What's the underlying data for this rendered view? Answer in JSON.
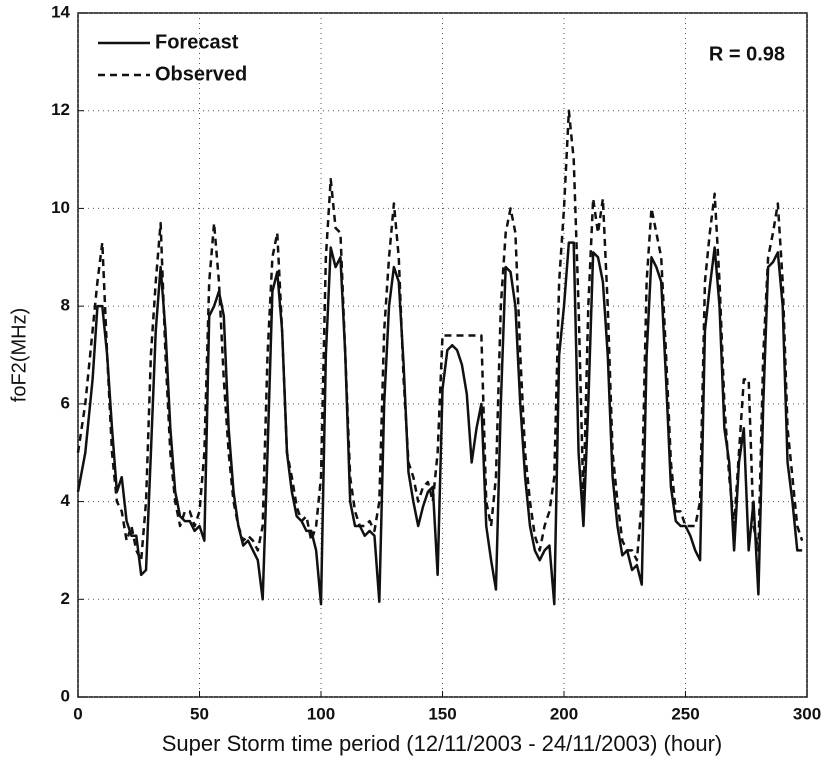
{
  "chart_data": {
    "type": "line",
    "annotation": "R = 0.98",
    "x_label": "Super Storm time period (12/11/2003 - 24/11/2003) (hour)",
    "y_label": "foF2(MHz)",
    "xlim": [
      0,
      300
    ],
    "xticks": [
      0,
      50,
      100,
      150,
      200,
      250,
      300
    ],
    "ylim": [
      0,
      14
    ],
    "yticks": [
      0,
      2,
      4,
      6,
      8,
      10,
      12,
      14
    ],
    "grid": true,
    "legend": "top-left",
    "x": [
      0,
      3,
      6,
      8,
      10,
      12,
      14,
      16,
      18,
      20,
      22,
      24,
      26,
      28,
      30,
      32,
      34,
      36,
      38,
      40,
      42,
      44,
      46,
      48,
      50,
      52,
      54,
      56,
      58,
      60,
      62,
      64,
      66,
      68,
      70,
      72,
      74,
      76,
      78,
      80,
      82,
      84,
      86,
      88,
      90,
      92,
      94,
      96,
      98,
      100,
      102,
      104,
      106,
      108,
      110,
      112,
      114,
      116,
      118,
      120,
      122,
      124,
      126,
      128,
      130,
      132,
      134,
      136,
      138,
      140,
      142,
      144,
      146,
      148,
      150,
      152,
      154,
      156,
      158,
      160,
      162,
      164,
      166,
      168,
      170,
      172,
      174,
      176,
      178,
      180,
      182,
      184,
      186,
      188,
      190,
      192,
      194,
      196,
      198,
      200,
      202,
      204,
      206,
      208,
      210,
      212,
      214,
      216,
      218,
      220,
      222,
      224,
      226,
      228,
      230,
      232,
      234,
      236,
      238,
      240,
      242,
      244,
      246,
      248,
      250,
      252,
      254,
      256,
      258,
      260,
      262,
      264,
      266,
      268,
      270,
      272,
      274,
      276,
      278,
      280,
      282,
      284,
      286,
      288,
      290,
      292,
      294,
      296,
      298
    ],
    "series": [
      {
        "name": "Forecast",
        "color": "#111111",
        "line_style": "solid",
        "values": [
          4.2,
          5.0,
          6.5,
          8.0,
          8.0,
          7.0,
          5.5,
          4.2,
          4.5,
          3.6,
          3.3,
          3.3,
          2.5,
          2.6,
          5.0,
          7.5,
          8.8,
          7.5,
          5.5,
          4.2,
          3.7,
          3.6,
          3.6,
          3.4,
          3.5,
          3.2,
          7.8,
          8.0,
          8.3,
          7.8,
          5.5,
          4.2,
          3.5,
          3.1,
          3.2,
          3.0,
          2.8,
          2.0,
          5.0,
          8.3,
          8.7,
          7.5,
          5.0,
          4.2,
          3.7,
          3.6,
          3.4,
          3.4,
          3.0,
          1.9,
          7.0,
          9.2,
          8.8,
          9.0,
          7.0,
          4.0,
          3.5,
          3.5,
          3.3,
          3.4,
          3.3,
          1.95,
          6.0,
          8.0,
          8.8,
          8.5,
          6.8,
          4.6,
          4.0,
          3.5,
          3.9,
          4.2,
          4.3,
          2.5,
          6.3,
          7.1,
          7.2,
          7.1,
          6.8,
          6.2,
          4.8,
          5.5,
          6.0,
          3.5,
          2.8,
          2.2,
          6.0,
          8.8,
          8.7,
          8.0,
          6.0,
          4.5,
          3.5,
          3.0,
          2.8,
          3.0,
          3.1,
          1.9,
          7.0,
          8.0,
          9.3,
          9.3,
          5.0,
          3.5,
          6.0,
          9.1,
          9.0,
          8.5,
          7.0,
          4.5,
          3.5,
          2.9,
          3.0,
          2.6,
          2.7,
          2.3,
          7.0,
          9.0,
          8.8,
          8.5,
          6.5,
          4.3,
          3.6,
          3.5,
          3.5,
          3.3,
          3.0,
          2.8,
          7.5,
          8.4,
          9.2,
          8.0,
          5.5,
          4.8,
          3.0,
          4.8,
          5.5,
          3.0,
          4.0,
          2.1,
          6.0,
          8.8,
          8.9,
          9.1,
          8.0,
          4.8,
          4.0,
          3.0,
          3.0
        ]
      },
      {
        "name": "Observed",
        "color": "#111111",
        "line_style": "dashed",
        "values": [
          5.0,
          6.0,
          7.5,
          8.5,
          9.3,
          7.0,
          5.0,
          4.0,
          3.8,
          3.2,
          3.5,
          3.0,
          2.8,
          4.0,
          7.0,
          8.5,
          9.7,
          7.0,
          5.0,
          4.0,
          3.5,
          3.8,
          3.8,
          3.5,
          3.8,
          5.0,
          8.5,
          9.7,
          8.5,
          6.5,
          5.0,
          4.0,
          3.5,
          3.2,
          3.3,
          3.2,
          3.0,
          3.5,
          7.0,
          9.0,
          9.5,
          7.5,
          5.0,
          4.5,
          3.9,
          3.6,
          3.7,
          3.2,
          3.5,
          4.5,
          9.0,
          10.6,
          9.6,
          9.5,
          7.0,
          4.5,
          3.8,
          3.5,
          3.5,
          3.6,
          3.4,
          4.0,
          7.5,
          9.0,
          10.1,
          9.0,
          6.5,
          4.8,
          4.5,
          4.0,
          4.3,
          4.4,
          4.0,
          5.0,
          7.4,
          7.4,
          7.4,
          7.4,
          7.4,
          7.4,
          7.4,
          7.4,
          7.4,
          4.0,
          3.5,
          4.5,
          8.0,
          9.5,
          10.0,
          9.5,
          7.0,
          5.0,
          4.0,
          3.3,
          3.0,
          3.5,
          3.8,
          4.5,
          8.5,
          10.0,
          12.0,
          11.0,
          8.0,
          4.0,
          8.0,
          10.2,
          9.5,
          10.2,
          8.0,
          5.0,
          4.0,
          3.2,
          3.0,
          3.0,
          2.8,
          4.0,
          8.5,
          10.0,
          9.5,
          9.0,
          7.0,
          4.8,
          3.8,
          3.8,
          3.5,
          3.5,
          3.5,
          4.0,
          8.5,
          9.5,
          10.3,
          8.5,
          6.0,
          4.5,
          3.5,
          5.0,
          6.5,
          6.5,
          3.5,
          3.0,
          7.0,
          9.0,
          9.5,
          10.1,
          8.5,
          5.5,
          4.5,
          3.5,
          3.2
        ]
      }
    ]
  }
}
